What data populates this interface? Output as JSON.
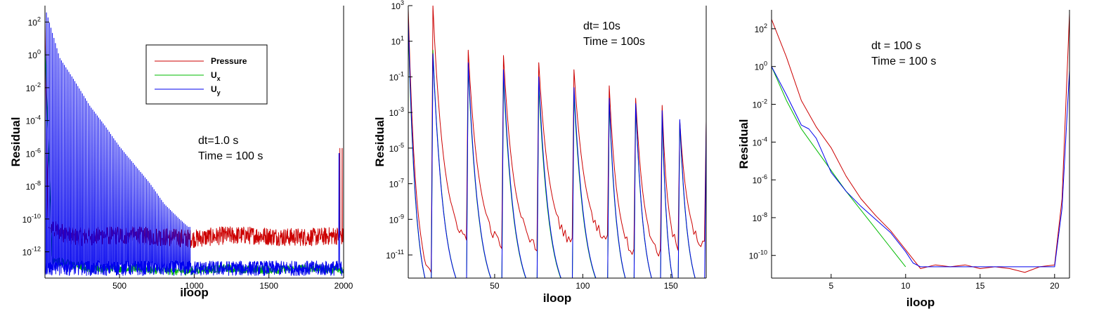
{
  "chart_data": [
    {
      "type": "line",
      "xlabel": "iloop",
      "ylabel": "Residual",
      "xlim": [
        1,
        2000
      ],
      "ylog": true,
      "ylim_exp": [
        -13.6,
        3.0
      ],
      "x_ticks": [
        500,
        1000,
        1500,
        2000
      ],
      "y_tick_exps": [
        2,
        0,
        -2,
        -4,
        -6,
        -8,
        -10,
        -12
      ],
      "annotation": [
        "dt=1.0 s",
        "Time = 100 s"
      ],
      "legend": {
        "placement": "top-center",
        "entries": [
          {
            "name": "Pressure",
            "sub": "",
            "color": "#cc0000"
          },
          {
            "name": "U",
            "sub": "x",
            "color": "#00bb00"
          },
          {
            "name": "U",
            "sub": "y",
            "color": "#0000ee"
          }
        ]
      },
      "series": [
        {
          "name": "Pressure",
          "color": "#cc0000",
          "behavior": "peaks decaying to a noisy plateau",
          "x": [
            1,
            20,
            200,
            400,
            600,
            800,
            1000,
            1200,
            1400,
            1600,
            1800,
            1970,
            2000
          ],
          "y_log10": [
            2.0,
            -10.5,
            -11.1,
            -11.0,
            -11.0,
            -11.1,
            -11.2,
            -11.0,
            -11.0,
            -11.1,
            -11.1,
            -11.0,
            -11.1
          ],
          "spikes": [
            {
              "x": 1975,
              "y_log10": -5.7
            },
            {
              "x": 1990,
              "y_log10": -5.7
            }
          ]
        },
        {
          "name": "Ux",
          "color": "#00bb00",
          "behavior": "decaying to a low plateau",
          "x": [
            1,
            50,
            300,
            600,
            900,
            1200,
            1500,
            1800,
            2000
          ],
          "y_log10": [
            0.5,
            -12.5,
            -13.0,
            -13.0,
            -13.2,
            -13.0,
            -13.1,
            -13.0,
            -13.1
          ]
        },
        {
          "name": "Uy",
          "color": "#0000ee",
          "behavior": "periodic spikes with decaying envelope over a noisy floor",
          "spike_envelope_x": [
            10,
            100,
            200,
            300,
            400,
            500,
            600,
            700,
            800,
            900,
            960
          ],
          "spike_envelope_log10": [
            2.6,
            -0.2,
            -1.6,
            -3.1,
            -4.3,
            -5.6,
            -6.7,
            -7.8,
            -9.1,
            -10.0,
            -10.5
          ],
          "floor_log10": -13.0,
          "end_spike": {
            "x": 1970,
            "y_log10": -6.0
          }
        }
      ]
    },
    {
      "type": "line",
      "xlabel": "iloop",
      "ylabel": "Residual",
      "xlim": [
        1,
        170
      ],
      "ylog": true,
      "ylim_exp": [
        -12.3,
        3.0
      ],
      "x_ticks": [
        50,
        100,
        150
      ],
      "y_tick_exps": [
        3,
        1,
        -1,
        -3,
        -5,
        -7,
        -9,
        -11
      ],
      "annotation": [
        "dt= 10s",
        "Time = 100s"
      ],
      "series": [
        {
          "name": "Pressure",
          "color": "#cc0000",
          "behavior": "sawtooth: jump then decay each time step",
          "step_starts": [
            1,
            15,
            35,
            55,
            75,
            95,
            115,
            130,
            145,
            155,
            170
          ],
          "step_peak_log10": [
            2.8,
            3.0,
            0.5,
            0.2,
            -0.2,
            -0.6,
            -1.5,
            -2.2,
            -2.6,
            -3.5,
            -3.5
          ],
          "step_floor_log10": [
            -12.4,
            -10.2,
            -10.5,
            -10.7,
            -10.4,
            -10.2,
            -11.0,
            -11.0,
            -10.6,
            -10.6,
            -10.6
          ]
        },
        {
          "name": "Ux",
          "color": "#00bb00",
          "behavior": "sawtooth, closely follows pressure",
          "step_starts": [
            1,
            15,
            35,
            55,
            75,
            95,
            115,
            130,
            145,
            155
          ],
          "step_peak_log10": [
            1.8,
            0.5,
            -0.5,
            -1.0,
            -1.5,
            -2.0,
            -2.5,
            -2.7,
            -3.2,
            -3.6
          ]
        },
        {
          "name": "Uy",
          "color": "#0000ee",
          "behavior": "sawtooth, closely follows pressure",
          "step_starts": [
            1,
            15,
            35,
            55,
            75,
            95,
            115,
            130,
            145,
            155,
            170
          ],
          "step_peak_log10": [
            2.2,
            0.3,
            -0.2,
            -0.6,
            -1.0,
            -1.6,
            -2.2,
            -2.5,
            -2.9,
            -3.4,
            -3.5
          ]
        }
      ]
    },
    {
      "type": "line",
      "xlabel": "iloop",
      "ylabel": "Residual",
      "xlim": [
        1,
        21
      ],
      "ylog": true,
      "ylim_exp": [
        -11.2,
        3.0
      ],
      "x_ticks": [
        5,
        10,
        15,
        20
      ],
      "y_tick_exps": [
        2,
        0,
        -2,
        -4,
        -6,
        -8,
        -10
      ],
      "annotation": [
        "dt = 100 s",
        "Time = 100 s"
      ],
      "series": [
        {
          "name": "Pressure",
          "color": "#cc0000",
          "x": [
            1,
            2,
            3,
            4,
            5,
            6,
            7,
            8,
            9,
            10,
            11,
            12,
            13,
            14,
            15,
            16,
            17,
            18,
            19,
            20,
            20.5,
            21
          ],
          "y_log10": [
            2.5,
            0.5,
            -1.8,
            -3.2,
            -4.3,
            -5.8,
            -7.0,
            -7.9,
            -8.7,
            -9.7,
            -10.7,
            -10.5,
            -10.6,
            -10.5,
            -10.7,
            -10.6,
            -10.7,
            -10.9,
            -10.6,
            -10.5,
            -7.0,
            2.8
          ]
        },
        {
          "name": "Ux",
          "color": "#00bb00",
          "x": [
            1,
            2,
            3,
            4,
            5,
            6,
            7,
            8,
            9,
            10
          ],
          "y_log10": [
            0.0,
            -1.8,
            -3.3,
            -4.4,
            -5.5,
            -6.6,
            -7.6,
            -8.6,
            -9.6,
            -10.6
          ]
        },
        {
          "name": "Uy",
          "color": "#0000ee",
          "x": [
            1,
            2,
            3,
            3.5,
            4,
            5,
            6,
            7,
            8,
            9,
            10,
            10.5,
            11,
            20,
            20.5,
            21
          ],
          "y_log10": [
            0.0,
            -1.5,
            -3.1,
            -3.3,
            -3.8,
            -5.6,
            -6.6,
            -7.4,
            -8.1,
            -8.8,
            -9.8,
            -10.4,
            -10.6,
            -10.6,
            -7.5,
            -0.2
          ]
        }
      ]
    }
  ]
}
